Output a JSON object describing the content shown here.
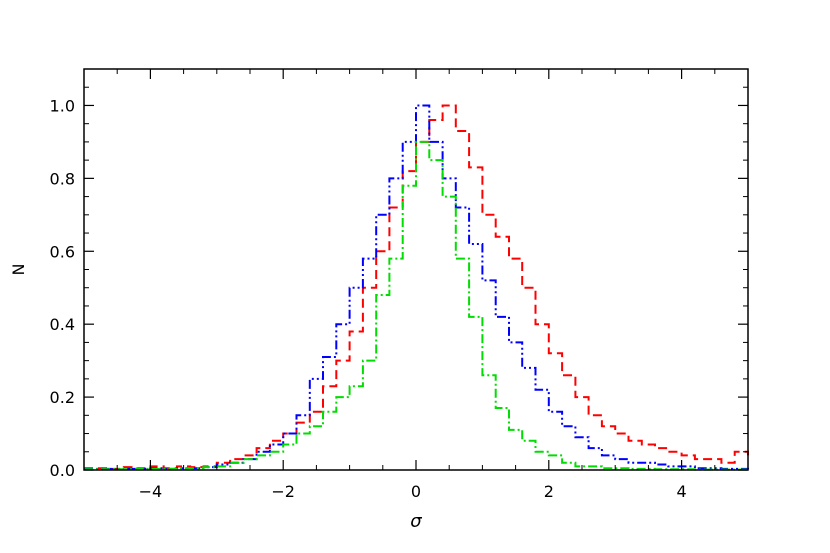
{
  "chart_data": {
    "type": "line",
    "title": "",
    "xlabel": "σ",
    "ylabel": "N",
    "xlim": [
      -5,
      5
    ],
    "ylim": [
      0,
      1.1
    ],
    "xticks": [
      -4,
      -2,
      0,
      2,
      4
    ],
    "xtick_labels": [
      "−4",
      "−2",
      "0",
      "2",
      "4"
    ],
    "yticks": [
      0.0,
      0.2,
      0.4,
      0.6,
      0.8,
      1.0
    ],
    "ytick_labels": [
      "0.0",
      "0.2",
      "0.4",
      "0.6",
      "0.8",
      "1.0"
    ],
    "grid": false,
    "legend": "none",
    "bin_width": 0.2,
    "series": [
      {
        "color": "#ff0000",
        "dash": "dashed",
        "x": [
          -5.0,
          -4.8,
          -4.6,
          -4.4,
          -4.2,
          -4.0,
          -3.8,
          -3.6,
          -3.4,
          -3.2,
          -3.0,
          -2.8,
          -2.6,
          -2.4,
          -2.2,
          -2.0,
          -1.8,
          -1.6,
          -1.4,
          -1.2,
          -1.0,
          -0.8,
          -0.6,
          -0.4,
          -0.2,
          0.0,
          0.2,
          0.4,
          0.6,
          0.8,
          1.0,
          1.2,
          1.4,
          1.6,
          1.8,
          2.0,
          2.2,
          2.4,
          2.6,
          2.8,
          3.0,
          3.2,
          3.4,
          3.6,
          3.8,
          4.0,
          4.2,
          4.4,
          4.6,
          4.8,
          5.0
        ],
        "values": [
          0.005,
          0.005,
          0.003,
          0.008,
          0.005,
          0.01,
          0.005,
          0.01,
          0.008,
          0.01,
          0.02,
          0.03,
          0.04,
          0.06,
          0.08,
          0.1,
          0.13,
          0.16,
          0.23,
          0.3,
          0.38,
          0.5,
          0.6,
          0.72,
          0.82,
          0.9,
          0.96,
          1.0,
          0.93,
          0.83,
          0.7,
          0.64,
          0.58,
          0.5,
          0.4,
          0.32,
          0.26,
          0.2,
          0.15,
          0.12,
          0.1,
          0.08,
          0.07,
          0.06,
          0.05,
          0.04,
          0.03,
          0.03,
          0.02,
          0.05,
          0.04
        ]
      },
      {
        "color": "#0000ff",
        "dash": "dash-dot-dot",
        "x": [
          -5.0,
          -4.8,
          -4.6,
          -4.4,
          -4.2,
          -4.0,
          -3.8,
          -3.6,
          -3.4,
          -3.2,
          -3.0,
          -2.8,
          -2.6,
          -2.4,
          -2.2,
          -2.0,
          -1.8,
          -1.6,
          -1.4,
          -1.2,
          -1.0,
          -0.8,
          -0.6,
          -0.4,
          -0.2,
          0.0,
          0.2,
          0.4,
          0.6,
          0.8,
          1.0,
          1.2,
          1.4,
          1.6,
          1.8,
          2.0,
          2.2,
          2.4,
          2.6,
          2.8,
          3.0,
          3.2,
          3.4,
          3.6,
          3.8,
          4.0,
          4.2,
          4.4,
          4.6,
          4.8,
          5.0
        ],
        "values": [
          0.003,
          0.003,
          0.002,
          0.003,
          0.003,
          0.005,
          0.003,
          0.005,
          0.005,
          0.008,
          0.015,
          0.02,
          0.03,
          0.05,
          0.07,
          0.1,
          0.15,
          0.25,
          0.31,
          0.4,
          0.5,
          0.58,
          0.7,
          0.8,
          0.9,
          1.0,
          0.9,
          0.8,
          0.72,
          0.62,
          0.52,
          0.42,
          0.35,
          0.28,
          0.22,
          0.16,
          0.12,
          0.09,
          0.06,
          0.04,
          0.03,
          0.02,
          0.02,
          0.015,
          0.01,
          0.01,
          0.005,
          0.005,
          0.003,
          0.003,
          0.002
        ]
      },
      {
        "color": "#00dd00",
        "dash": "dash-dot",
        "x": [
          -5.0,
          -4.8,
          -4.6,
          -4.4,
          -4.2,
          -4.0,
          -3.8,
          -3.6,
          -3.4,
          -3.2,
          -3.0,
          -2.8,
          -2.6,
          -2.4,
          -2.2,
          -2.0,
          -1.8,
          -1.6,
          -1.4,
          -1.2,
          -1.0,
          -0.8,
          -0.6,
          -0.4,
          -0.2,
          0.0,
          0.2,
          0.4,
          0.6,
          0.8,
          1.0,
          1.2,
          1.4,
          1.6,
          1.8,
          2.0,
          2.2,
          2.4,
          2.6,
          2.8,
          3.0,
          3.2,
          3.4,
          3.6,
          3.8,
          4.0,
          4.2,
          4.4,
          4.6,
          4.8,
          5.0
        ],
        "values": [
          0.002,
          0.002,
          0.002,
          0.002,
          0.003,
          0.003,
          0.003,
          0.005,
          0.005,
          0.008,
          0.01,
          0.02,
          0.03,
          0.04,
          0.05,
          0.07,
          0.1,
          0.12,
          0.16,
          0.2,
          0.23,
          0.3,
          0.48,
          0.58,
          0.78,
          0.9,
          0.85,
          0.75,
          0.58,
          0.42,
          0.26,
          0.17,
          0.11,
          0.08,
          0.05,
          0.04,
          0.02,
          0.01,
          0.01,
          0.005,
          0.005,
          0.003,
          0.003,
          0.002,
          0.002,
          0.002,
          0.001,
          0.001,
          0.001,
          0.001,
          0.001
        ]
      }
    ]
  }
}
